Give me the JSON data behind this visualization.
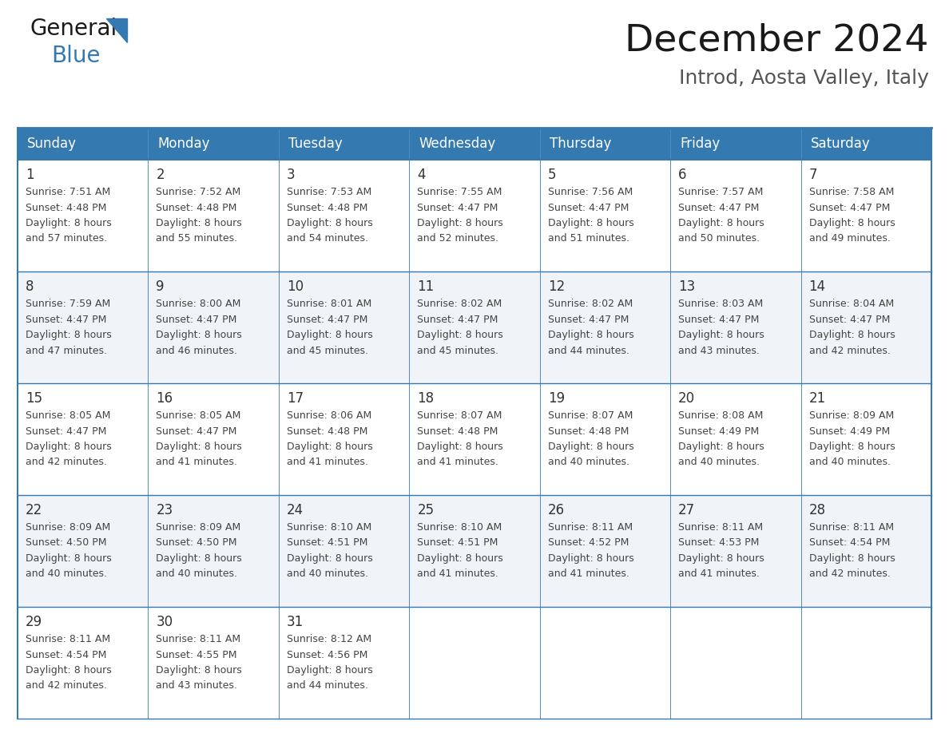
{
  "title": "December 2024",
  "subtitle": "Introd, Aosta Valley, Italy",
  "header_color": "#3579b1",
  "header_text_color": "#ffffff",
  "day_headers": [
    "Sunday",
    "Monday",
    "Tuesday",
    "Wednesday",
    "Thursday",
    "Friday",
    "Saturday"
  ],
  "days": [
    {
      "day": 1,
      "col": 0,
      "row": 0,
      "sunrise": "7:51 AM",
      "sunset": "4:48 PM",
      "daylight": "8 hours",
      "daylight2": "and 57 minutes."
    },
    {
      "day": 2,
      "col": 1,
      "row": 0,
      "sunrise": "7:52 AM",
      "sunset": "4:48 PM",
      "daylight": "8 hours",
      "daylight2": "and 55 minutes."
    },
    {
      "day": 3,
      "col": 2,
      "row": 0,
      "sunrise": "7:53 AM",
      "sunset": "4:48 PM",
      "daylight": "8 hours",
      "daylight2": "and 54 minutes."
    },
    {
      "day": 4,
      "col": 3,
      "row": 0,
      "sunrise": "7:55 AM",
      "sunset": "4:47 PM",
      "daylight": "8 hours",
      "daylight2": "and 52 minutes."
    },
    {
      "day": 5,
      "col": 4,
      "row": 0,
      "sunrise": "7:56 AM",
      "sunset": "4:47 PM",
      "daylight": "8 hours",
      "daylight2": "and 51 minutes."
    },
    {
      "day": 6,
      "col": 5,
      "row": 0,
      "sunrise": "7:57 AM",
      "sunset": "4:47 PM",
      "daylight": "8 hours",
      "daylight2": "and 50 minutes."
    },
    {
      "day": 7,
      "col": 6,
      "row": 0,
      "sunrise": "7:58 AM",
      "sunset": "4:47 PM",
      "daylight": "8 hours",
      "daylight2": "and 49 minutes."
    },
    {
      "day": 8,
      "col": 0,
      "row": 1,
      "sunrise": "7:59 AM",
      "sunset": "4:47 PM",
      "daylight": "8 hours",
      "daylight2": "and 47 minutes."
    },
    {
      "day": 9,
      "col": 1,
      "row": 1,
      "sunrise": "8:00 AM",
      "sunset": "4:47 PM",
      "daylight": "8 hours",
      "daylight2": "and 46 minutes."
    },
    {
      "day": 10,
      "col": 2,
      "row": 1,
      "sunrise": "8:01 AM",
      "sunset": "4:47 PM",
      "daylight": "8 hours",
      "daylight2": "and 45 minutes."
    },
    {
      "day": 11,
      "col": 3,
      "row": 1,
      "sunrise": "8:02 AM",
      "sunset": "4:47 PM",
      "daylight": "8 hours",
      "daylight2": "and 45 minutes."
    },
    {
      "day": 12,
      "col": 4,
      "row": 1,
      "sunrise": "8:02 AM",
      "sunset": "4:47 PM",
      "daylight": "8 hours",
      "daylight2": "and 44 minutes."
    },
    {
      "day": 13,
      "col": 5,
      "row": 1,
      "sunrise": "8:03 AM",
      "sunset": "4:47 PM",
      "daylight": "8 hours",
      "daylight2": "and 43 minutes."
    },
    {
      "day": 14,
      "col": 6,
      "row": 1,
      "sunrise": "8:04 AM",
      "sunset": "4:47 PM",
      "daylight": "8 hours",
      "daylight2": "and 42 minutes."
    },
    {
      "day": 15,
      "col": 0,
      "row": 2,
      "sunrise": "8:05 AM",
      "sunset": "4:47 PM",
      "daylight": "8 hours",
      "daylight2": "and 42 minutes."
    },
    {
      "day": 16,
      "col": 1,
      "row": 2,
      "sunrise": "8:05 AM",
      "sunset": "4:47 PM",
      "daylight": "8 hours",
      "daylight2": "and 41 minutes."
    },
    {
      "day": 17,
      "col": 2,
      "row": 2,
      "sunrise": "8:06 AM",
      "sunset": "4:48 PM",
      "daylight": "8 hours",
      "daylight2": "and 41 minutes."
    },
    {
      "day": 18,
      "col": 3,
      "row": 2,
      "sunrise": "8:07 AM",
      "sunset": "4:48 PM",
      "daylight": "8 hours",
      "daylight2": "and 41 minutes."
    },
    {
      "day": 19,
      "col": 4,
      "row": 2,
      "sunrise": "8:07 AM",
      "sunset": "4:48 PM",
      "daylight": "8 hours",
      "daylight2": "and 40 minutes."
    },
    {
      "day": 20,
      "col": 5,
      "row": 2,
      "sunrise": "8:08 AM",
      "sunset": "4:49 PM",
      "daylight": "8 hours",
      "daylight2": "and 40 minutes."
    },
    {
      "day": 21,
      "col": 6,
      "row": 2,
      "sunrise": "8:09 AM",
      "sunset": "4:49 PM",
      "daylight": "8 hours",
      "daylight2": "and 40 minutes."
    },
    {
      "day": 22,
      "col": 0,
      "row": 3,
      "sunrise": "8:09 AM",
      "sunset": "4:50 PM",
      "daylight": "8 hours",
      "daylight2": "and 40 minutes."
    },
    {
      "day": 23,
      "col": 1,
      "row": 3,
      "sunrise": "8:09 AM",
      "sunset": "4:50 PM",
      "daylight": "8 hours",
      "daylight2": "and 40 minutes."
    },
    {
      "day": 24,
      "col": 2,
      "row": 3,
      "sunrise": "8:10 AM",
      "sunset": "4:51 PM",
      "daylight": "8 hours",
      "daylight2": "and 40 minutes."
    },
    {
      "day": 25,
      "col": 3,
      "row": 3,
      "sunrise": "8:10 AM",
      "sunset": "4:51 PM",
      "daylight": "8 hours",
      "daylight2": "and 41 minutes."
    },
    {
      "day": 26,
      "col": 4,
      "row": 3,
      "sunrise": "8:11 AM",
      "sunset": "4:52 PM",
      "daylight": "8 hours",
      "daylight2": "and 41 minutes."
    },
    {
      "day": 27,
      "col": 5,
      "row": 3,
      "sunrise": "8:11 AM",
      "sunset": "4:53 PM",
      "daylight": "8 hours",
      "daylight2": "and 41 minutes."
    },
    {
      "day": 28,
      "col": 6,
      "row": 3,
      "sunrise": "8:11 AM",
      "sunset": "4:54 PM",
      "daylight": "8 hours",
      "daylight2": "and 42 minutes."
    },
    {
      "day": 29,
      "col": 0,
      "row": 4,
      "sunrise": "8:11 AM",
      "sunset": "4:54 PM",
      "daylight": "8 hours",
      "daylight2": "and 42 minutes."
    },
    {
      "day": 30,
      "col": 1,
      "row": 4,
      "sunrise": "8:11 AM",
      "sunset": "4:55 PM",
      "daylight": "8 hours",
      "daylight2": "and 43 minutes."
    },
    {
      "day": 31,
      "col": 2,
      "row": 4,
      "sunrise": "8:12 AM",
      "sunset": "4:56 PM",
      "daylight": "8 hours",
      "daylight2": "and 44 minutes."
    }
  ],
  "num_rows": 5,
  "border_color": "#3579b1",
  "text_color": "#444444",
  "day_num_color": "#333333",
  "cell_text_size": 9.0,
  "day_num_size": 12,
  "header_fontsize": 12,
  "title_fontsize": 34,
  "subtitle_fontsize": 18,
  "logo_general_size": 20,
  "logo_blue_size": 20
}
